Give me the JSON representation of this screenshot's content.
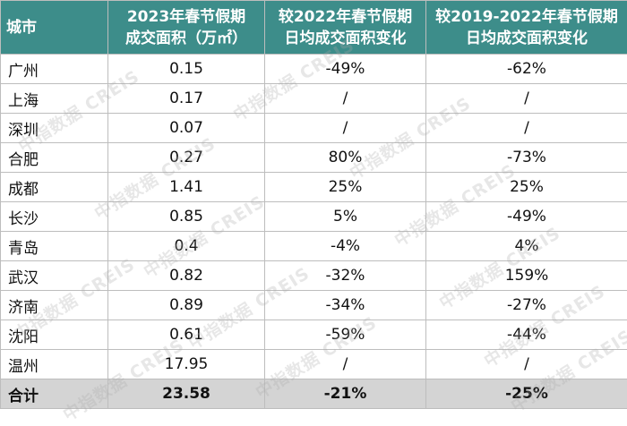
{
  "table": {
    "headers": [
      [
        "城市"
      ],
      [
        "2023年春节假期",
        "成交面积（万㎡）"
      ],
      [
        "较2022年春节假期",
        "日均成交面积变化"
      ],
      [
        "较2019-2022年春节假期",
        "日均成交面积变化"
      ]
    ],
    "rows": [
      [
        "广州",
        "0.15",
        "-49%",
        "-62%"
      ],
      [
        "上海",
        "0.17",
        "/",
        "/"
      ],
      [
        "深圳",
        "0.07",
        "/",
        "/"
      ],
      [
        "合肥",
        "0.27",
        "80%",
        "-73%"
      ],
      [
        "成都",
        "1.41",
        "25%",
        "25%"
      ],
      [
        "长沙",
        "0.85",
        "5%",
        "-49%"
      ],
      [
        "青岛",
        "0.4",
        "-4%",
        "4%"
      ],
      [
        "武汉",
        "0.82",
        "-32%",
        "159%"
      ],
      [
        "济南",
        "0.89",
        "-34%",
        "-27%"
      ],
      [
        "沈阳",
        "0.61",
        "-59%",
        "-44%"
      ],
      [
        "温州",
        "17.95",
        "/",
        "/"
      ]
    ],
    "total": [
      "合计",
      "23.58",
      "-21%",
      "-25%"
    ]
  },
  "watermark": "中指数据 CREIS",
  "colors": {
    "header_bg": "#3d8d8a",
    "header_text": "#ffffff",
    "total_bg": "#d4d4d4",
    "border": "#bdbdbd"
  }
}
